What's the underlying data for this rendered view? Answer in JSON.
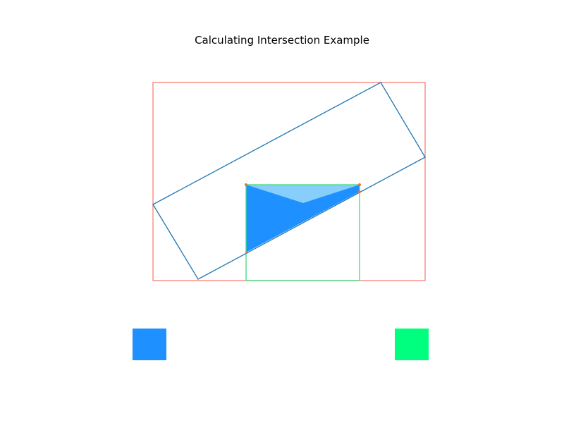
{
  "title": "Calculating Intersection Example",
  "colors": {
    "bounding_box": "#fa8072",
    "rotated_rect": "#1f77b4",
    "axis_rect": "#3ddc84",
    "intersection_fill": "#1e90ff",
    "intersection_highlight": "#87cefa",
    "vertex_marker": "#e8743b",
    "swatch_left": "#1e90ff",
    "swatch_right": "#00ff7f"
  },
  "legend": {
    "left_swatch_icon": "blue-square",
    "right_swatch_icon": "green-square"
  }
}
